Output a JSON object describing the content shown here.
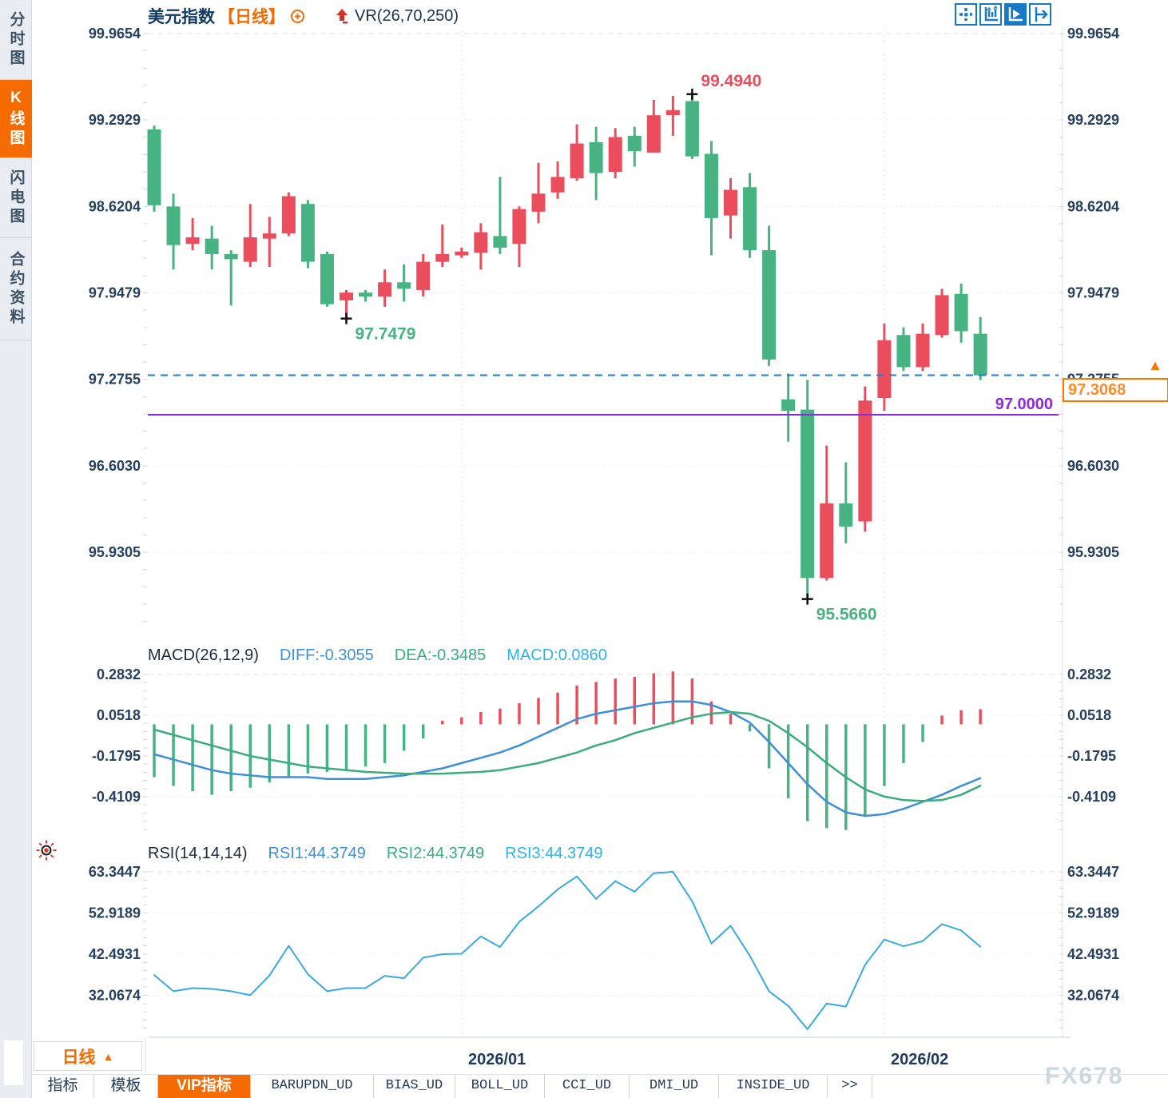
{
  "sidebar": {
    "items": [
      {
        "label": "分时图",
        "active": false
      },
      {
        "label": "K线图",
        "active": true
      },
      {
        "label": "闪电图",
        "active": false
      },
      {
        "label": "合约资料",
        "active": false
      }
    ]
  },
  "header": {
    "symbol": "美元指数",
    "period_bracket": "【日线】",
    "overlay_indicator": "VR(26,70,250)"
  },
  "current_price": {
    "value": "97.3068"
  },
  "support_level": {
    "label": "97.0000"
  },
  "macd_header": {
    "title": "MACD(26,12,9)",
    "diff": "DIFF:-0.3055",
    "dea": "DEA:-0.3485",
    "macd": "MACD:0.0860"
  },
  "rsi_header": {
    "title": "RSI(14,14,14)",
    "rsi1": "RSI1:44.3749",
    "rsi2": "RSI2:44.3749",
    "rsi3": "RSI3:44.3749"
  },
  "period_box": {
    "label": "日线",
    "arrow": "▲"
  },
  "tabs": [
    "指标",
    "模板",
    "VIP指标",
    "BARUPDN_UD",
    "BIAS_UD",
    "BOLL_UD",
    "CCI_UD",
    "DMI_UD",
    "INSIDE_UD",
    ">>"
  ],
  "watermark": "FX678",
  "chart_data": [
    {
      "id": "main",
      "type": "candlestick",
      "title": "美元指数 日线",
      "up_color": "#ea4d5c",
      "down_color": "#47b282",
      "y_ticks": [
        99.9654,
        99.2929,
        98.6204,
        97.9479,
        97.2755,
        96.603,
        95.9305
      ],
      "ohlc": [
        [
          99.22,
          99.25,
          98.58,
          98.63
        ],
        [
          98.62,
          98.72,
          98.13,
          98.32
        ],
        [
          98.33,
          98.53,
          98.28,
          98.38
        ],
        [
          98.37,
          98.47,
          98.13,
          98.25
        ],
        [
          98.25,
          98.28,
          97.85,
          98.21
        ],
        [
          98.19,
          98.64,
          98.15,
          98.38
        ],
        [
          98.37,
          98.54,
          98.15,
          98.41
        ],
        [
          98.41,
          98.73,
          98.39,
          98.7
        ],
        [
          98.64,
          98.67,
          98.14,
          98.19
        ],
        [
          98.25,
          98.27,
          97.84,
          97.86
        ],
        [
          97.89,
          97.97,
          97.7479,
          97.95
        ],
        [
          97.95,
          97.97,
          97.88,
          97.92
        ],
        [
          97.92,
          98.13,
          97.84,
          98.03
        ],
        [
          98.03,
          98.17,
          97.88,
          97.98
        ],
        [
          97.97,
          98.25,
          97.92,
          98.19
        ],
        [
          98.19,
          98.48,
          98.15,
          98.25
        ],
        [
          98.24,
          98.3,
          98.22,
          98.27
        ],
        [
          98.26,
          98.49,
          98.13,
          98.42
        ],
        [
          98.39,
          98.85,
          98.25,
          98.3
        ],
        [
          98.33,
          98.62,
          98.15,
          98.6
        ],
        [
          98.58,
          98.96,
          98.49,
          98.72
        ],
        [
          98.73,
          98.97,
          98.68,
          98.85
        ],
        [
          98.84,
          99.26,
          98.82,
          99.11
        ],
        [
          99.12,
          99.24,
          98.67,
          98.88
        ],
        [
          98.89,
          99.23,
          98.84,
          99.16
        ],
        [
          99.17,
          99.24,
          98.93,
          99.05
        ],
        [
          99.04,
          99.45,
          99.04,
          99.33
        ],
        [
          99.33,
          99.48,
          99.17,
          99.37
        ],
        [
          99.44,
          99.494,
          98.99,
          99.01
        ],
        [
          99.03,
          99.13,
          98.24,
          98.53
        ],
        [
          98.55,
          98.84,
          98.37,
          98.75
        ],
        [
          98.77,
          98.88,
          98.22,
          98.28
        ],
        [
          98.28,
          98.47,
          97.38,
          97.43
        ],
        [
          97.12,
          97.32,
          96.79,
          97.03
        ],
        [
          97.04,
          97.27,
          95.566,
          95.73
        ],
        [
          95.73,
          96.76,
          95.71,
          96.31
        ],
        [
          96.31,
          96.63,
          96.0,
          96.13
        ],
        [
          96.17,
          97.22,
          96.09,
          97.11
        ],
        [
          97.13,
          97.71,
          97.03,
          97.58
        ],
        [
          97.62,
          97.68,
          97.34,
          97.37
        ],
        [
          97.37,
          97.71,
          97.34,
          97.63
        ],
        [
          97.62,
          97.98,
          97.6,
          97.93
        ],
        [
          97.94,
          98.02,
          97.56,
          97.65
        ],
        [
          97.63,
          97.76,
          97.27,
          97.3068
        ]
      ],
      "month_gridlines": [
        {
          "index": 16,
          "label": "2026/01"
        },
        {
          "index": 38,
          "label": "2026/02"
        }
      ],
      "annotations": [
        {
          "index": 28,
          "price": 99.494,
          "text": "99.4940",
          "color": "#ea4d5c",
          "pos": "above"
        },
        {
          "index": 10,
          "price": 97.7479,
          "text": "97.7479",
          "color": "#47b282",
          "pos": "below"
        },
        {
          "index": 34,
          "price": 95.566,
          "text": "95.5660",
          "color": "#47b282",
          "pos": "below"
        }
      ],
      "hlines": [
        {
          "price": 97.3068,
          "style": "dashed",
          "color": "#1b7fd6"
        },
        {
          "price": 97.0,
          "style": "solid",
          "color": "#8a2ae0"
        }
      ]
    },
    {
      "id": "macd",
      "type": "bar",
      "title": "MACD(26,12,9)",
      "y_ticks": [
        0.2832,
        0.0518,
        -0.1795,
        -0.4109
      ],
      "diff_color": "#3f8fd8",
      "dea_color": "#3cab7e",
      "hist": [
        -0.3,
        -0.35,
        -0.38,
        -0.4,
        -0.38,
        -0.36,
        -0.33,
        -0.3,
        -0.28,
        -0.27,
        -0.26,
        -0.24,
        -0.22,
        -0.15,
        -0.08,
        0.02,
        0.04,
        0.07,
        0.09,
        0.12,
        0.15,
        0.18,
        0.22,
        0.24,
        0.26,
        0.27,
        0.29,
        0.3,
        0.26,
        0.13,
        0.06,
        -0.04,
        -0.25,
        -0.42,
        -0.55,
        -0.59,
        -0.6,
        -0.52,
        -0.35,
        -0.22,
        -0.1,
        0.05,
        0.08,
        0.086
      ],
      "diff": [
        -0.17,
        -0.2,
        -0.23,
        -0.26,
        -0.28,
        -0.29,
        -0.3,
        -0.3,
        -0.3,
        -0.31,
        -0.31,
        -0.31,
        -0.3,
        -0.29,
        -0.27,
        -0.25,
        -0.22,
        -0.19,
        -0.16,
        -0.12,
        -0.07,
        -0.02,
        0.03,
        0.06,
        0.08,
        0.1,
        0.12,
        0.13,
        0.13,
        0.11,
        0.07,
        0.01,
        -0.1,
        -0.22,
        -0.34,
        -0.44,
        -0.5,
        -0.52,
        -0.51,
        -0.48,
        -0.44,
        -0.4,
        -0.35,
        -0.3055
      ],
      "dea": [
        -0.03,
        -0.06,
        -0.09,
        -0.12,
        -0.15,
        -0.18,
        -0.2,
        -0.22,
        -0.24,
        -0.25,
        -0.26,
        -0.27,
        -0.275,
        -0.28,
        -0.28,
        -0.28,
        -0.275,
        -0.27,
        -0.26,
        -0.24,
        -0.22,
        -0.19,
        -0.16,
        -0.12,
        -0.09,
        -0.05,
        -0.02,
        0.01,
        0.04,
        0.06,
        0.07,
        0.06,
        0.02,
        -0.05,
        -0.13,
        -0.22,
        -0.3,
        -0.37,
        -0.41,
        -0.43,
        -0.435,
        -0.43,
        -0.4,
        -0.3485
      ]
    },
    {
      "id": "rsi",
      "type": "line",
      "title": "RSI(14,14,14)",
      "y_ticks": [
        63.3447,
        52.9189,
        42.4931,
        32.0674
      ],
      "line_color": "#3aa9dc",
      "values": [
        37.2,
        33.1,
        33.9,
        33.7,
        33.1,
        32.1,
        37.1,
        44.6,
        37.4,
        33.1,
        33.9,
        33.9,
        37.0,
        36.4,
        41.6,
        42.5,
        42.6,
        47.0,
        44.3,
        50.7,
        54.6,
        58.9,
        62.2,
        56.5,
        61.0,
        58.3,
        63.0,
        63.34,
        55.9,
        45.2,
        49.7,
        42.1,
        33.1,
        29.4,
        23.5,
        30.0,
        29.2,
        39.8,
        46.2,
        44.5,
        45.8,
        50.1,
        48.5,
        44.3749
      ]
    }
  ]
}
